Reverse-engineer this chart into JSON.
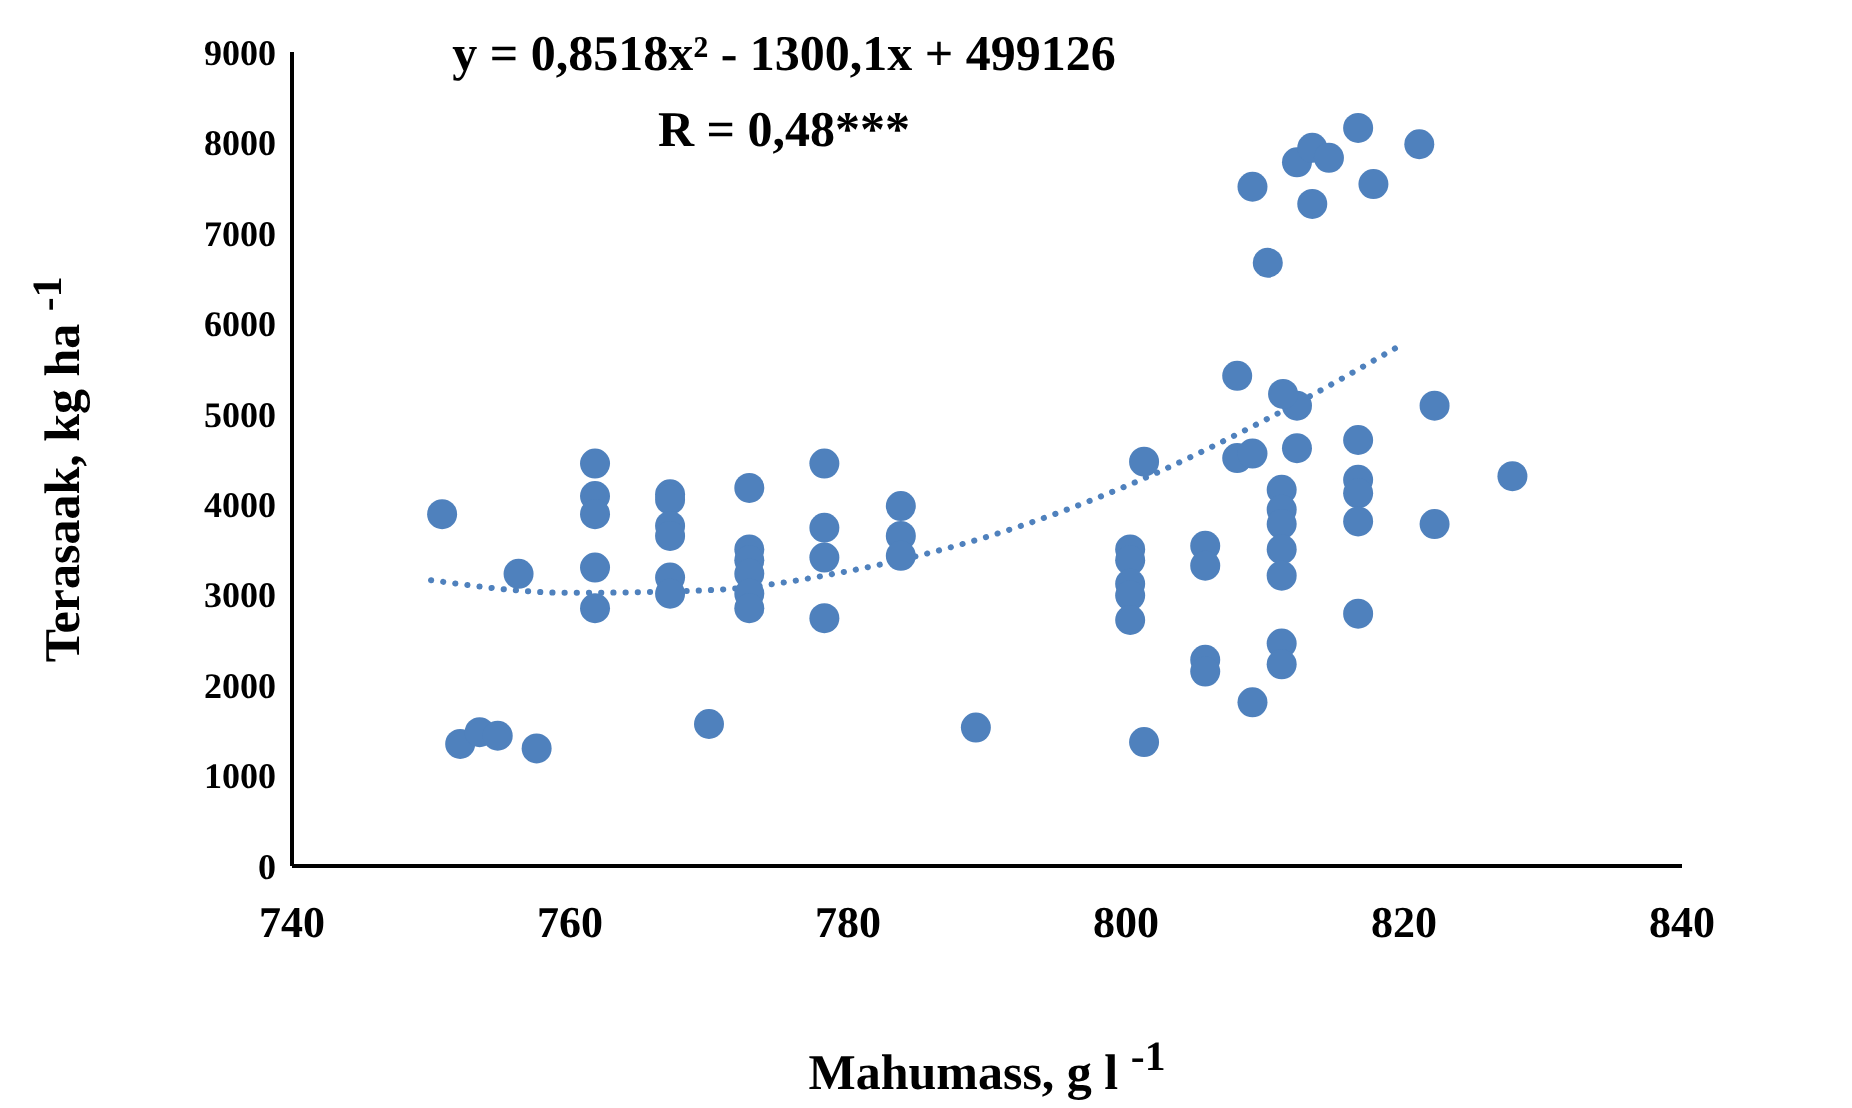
{
  "chart_data": {
    "type": "scatter",
    "xlabel": "Mahumass, g l $^{-1}$",
    "ylabel": "Terasaak, kg ha $^{-1}$",
    "annotations": [
      "y = 0,8518x² - 1300,1x + 499126",
      "R = 0,48***"
    ],
    "xlim": [
      740,
      840
    ],
    "xticks": [
      740,
      760,
      780,
      800,
      820,
      840
    ],
    "ylim": [
      0,
      9000
    ],
    "yticks": [
      0,
      1000,
      2000,
      3000,
      4000,
      5000,
      6000,
      7000,
      8000,
      9000
    ],
    "marker": "circle",
    "series": [
      {
        "color": "#4f81bd",
        "x": [
          750.8,
          752.1,
          753.5,
          754.8,
          757.6,
          756.3,
          761.8,
          761.8,
          761.8,
          761.8,
          761.8,
          767.2,
          767.2,
          767.2,
          767.2,
          767.2,
          767.2,
          772.9,
          772.9,
          772.9,
          772.9,
          772.9,
          772.9,
          770.0,
          778.3,
          778.3,
          778.3,
          778.3,
          783.8,
          783.8,
          783.8,
          789.2,
          801.3,
          801.3,
          800.3,
          800.3,
          800.3,
          800.3,
          800.3,
          805.7,
          805.7,
          805.7,
          805.7,
          809.1,
          808.0,
          809.1,
          811.2,
          811.2,
          811.2,
          811.2,
          811.2,
          811.2,
          811.2,
          812.3,
          812.3,
          811.3,
          808.0,
          816.7,
          816.7,
          816.7,
          816.7,
          816.7,
          822.2,
          822.2,
          827.8,
          809.1,
          810.2,
          812.3,
          813.4,
          814.6,
          813.4,
          816.7,
          817.8,
          821.1
        ],
        "values": [
          3890,
          1350,
          1480,
          1440,
          1300,
          3230,
          4450,
          4090,
          3890,
          3300,
          2850,
          4110,
          4050,
          3760,
          3650,
          3190,
          3010,
          4180,
          3500,
          3380,
          3230,
          3010,
          2850,
          1570,
          4450,
          3740,
          3410,
          2740,
          3980,
          3650,
          3430,
          1530,
          4470,
          1370,
          3500,
          3380,
          3120,
          2990,
          2720,
          3540,
          3320,
          2280,
          2150,
          1810,
          4510,
          4560,
          4160,
          3940,
          3780,
          3500,
          3210,
          2460,
          2230,
          4620,
          5090,
          5220,
          5420,
          4710,
          4270,
          4120,
          3810,
          2790,
          5090,
          3780,
          4310,
          7510,
          6670,
          7780,
          7940,
          7830,
          7320,
          8160,
          7540,
          7980
        ]
      },
      {
        "type": "line",
        "color": "#4f81bd",
        "line_style": "dotted",
        "marker": "none",
        "x": [
          750,
          760,
          770,
          780,
          790,
          800,
          810,
          820
        ],
        "values": [
          3160,
          3020,
          3050,
          3260,
          3640,
          4200,
          4930,
          5780
        ]
      }
    ]
  }
}
